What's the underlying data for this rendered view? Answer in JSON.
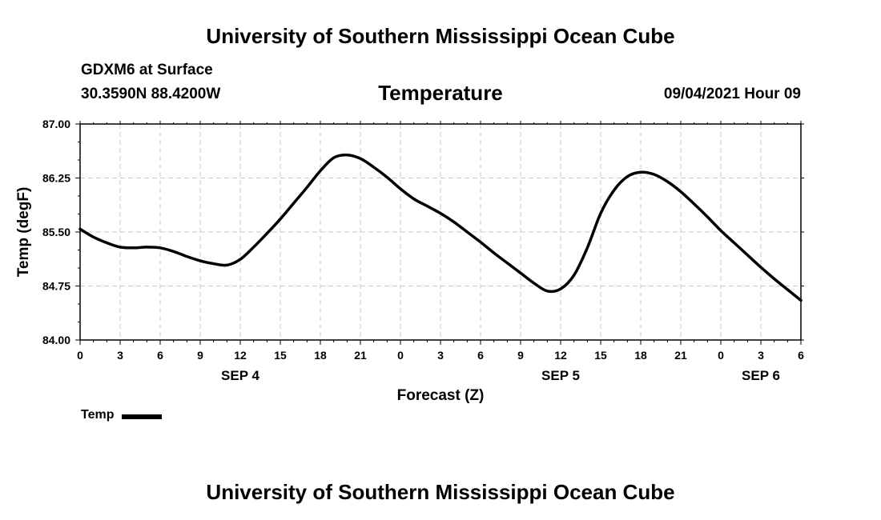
{
  "header": {
    "title_top": "University of Southern Mississippi Ocean Cube",
    "title_bottom": "University of Southern Mississippi Ocean Cube",
    "station": "GDXM6 at Surface",
    "coords": "30.3590N  88.4200W",
    "chart_title": "Temperature",
    "datetime": "09/04/2021 Hour 09"
  },
  "legend": {
    "label": "Temp",
    "color": "#000000"
  },
  "chart_data": {
    "type": "line",
    "title": "Temperature",
    "xlabel": "Forecast (Z)",
    "ylabel": "Temp (degF)",
    "xlim": [
      0,
      54
    ],
    "ylim": [
      84.0,
      87.0
    ],
    "grid": true,
    "y_ticks": [
      "87.00",
      "86.25",
      "85.50",
      "84.75",
      "84.00"
    ],
    "y_tick_values": [
      87.0,
      86.25,
      85.5,
      84.75,
      84.0
    ],
    "x_ticks": [
      0,
      3,
      6,
      9,
      12,
      15,
      18,
      21,
      24,
      27,
      30,
      33,
      36,
      39,
      42,
      45,
      48,
      51,
      54
    ],
    "x_tick_labels": [
      "0",
      "3",
      "6",
      "9",
      "12",
      "15",
      "18",
      "21",
      "0",
      "3",
      "6",
      "9",
      "12",
      "15",
      "18",
      "21",
      "0",
      "3",
      "6"
    ],
    "day_labels": [
      {
        "text": "SEP 4",
        "x": 12
      },
      {
        "text": "SEP 5",
        "x": 36
      },
      {
        "text": "SEP 6",
        "x": 51
      }
    ],
    "series": [
      {
        "name": "Temp",
        "color": "#000000",
        "x": [
          0,
          1,
          2,
          3,
          4,
          5,
          6,
          7,
          8,
          9,
          10,
          11,
          12,
          13,
          14,
          15,
          16,
          17,
          18,
          19,
          20,
          21,
          22,
          23,
          24,
          25,
          26,
          27,
          28,
          29,
          30,
          31,
          32,
          33,
          34,
          35,
          36,
          37,
          38,
          39,
          40,
          41,
          42,
          43,
          44,
          45,
          46,
          47,
          48,
          49,
          50,
          51,
          52,
          53,
          54
        ],
        "values": [
          85.54,
          85.43,
          85.35,
          85.29,
          85.28,
          85.29,
          85.28,
          85.23,
          85.16,
          85.1,
          85.06,
          85.04,
          85.12,
          85.29,
          85.48,
          85.68,
          85.9,
          86.12,
          86.35,
          86.53,
          86.57,
          86.52,
          86.4,
          86.26,
          86.1,
          85.96,
          85.86,
          85.76,
          85.64,
          85.5,
          85.36,
          85.21,
          85.07,
          84.93,
          84.79,
          84.68,
          84.71,
          84.9,
          85.28,
          85.76,
          86.08,
          86.27,
          86.33,
          86.3,
          86.2,
          86.06,
          85.89,
          85.71,
          85.52,
          85.35,
          85.18,
          85.01,
          84.85,
          84.7,
          84.55
        ]
      }
    ]
  }
}
